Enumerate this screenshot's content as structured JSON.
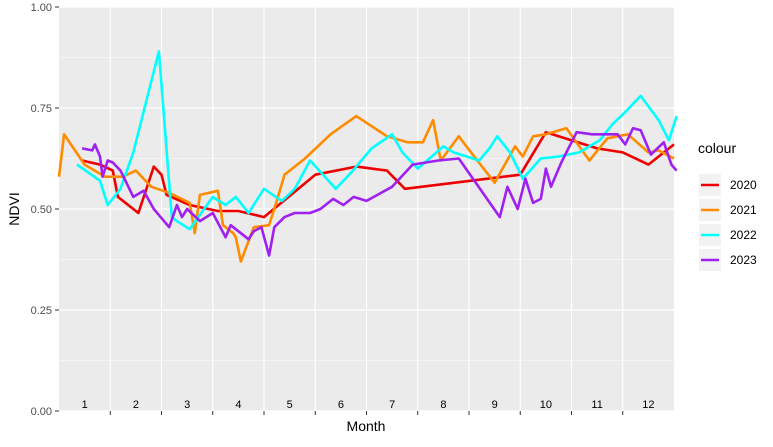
{
  "chart_data": {
    "type": "line",
    "title": "",
    "xlabel": "Month",
    "ylabel": "NDVI",
    "xlim": [
      0.5,
      12.5
    ],
    "ylim": [
      0,
      1
    ],
    "x_ticks": [
      "1",
      "2",
      "3",
      "4",
      "5",
      "6",
      "7",
      "8",
      "9",
      "10",
      "11",
      "12"
    ],
    "y_ticks": [
      "0.00",
      "0.25",
      "0.50",
      "0.75",
      "1.00"
    ],
    "y_tick_values": [
      0,
      0.25,
      0.5,
      0.75,
      1
    ],
    "grid": true,
    "background": "#EBEBEB",
    "legend": {
      "title": "colour",
      "placement": "right"
    },
    "series": [
      {
        "name": "2020",
        "color": "#EE0000",
        "x": [
          0.95,
          1.3,
          1.55,
          1.65,
          2.05,
          2.35,
          2.5,
          2.6,
          3.05,
          3.6,
          4.0,
          4.5,
          5.5,
          6.3,
          6.9,
          7.25,
          9.5,
          10.0,
          11.0,
          11.5,
          12.0,
          12.5
        ],
        "y": [
          0.62,
          0.61,
          0.595,
          0.53,
          0.49,
          0.605,
          0.585,
          0.535,
          0.51,
          0.495,
          0.495,
          0.48,
          0.585,
          0.605,
          0.595,
          0.55,
          0.585,
          0.69,
          0.65,
          0.64,
          0.61,
          0.66
        ]
      },
      {
        "name": "2021",
        "color": "#FF8C00",
        "x": [
          0.5,
          0.6,
          1.0,
          1.4,
          1.75,
          2.0,
          2.3,
          2.65,
          3.05,
          3.15,
          3.25,
          3.6,
          3.7,
          3.9,
          3.95,
          4.05,
          4.3,
          4.6,
          4.75,
          4.9,
          5.3,
          5.8,
          6.3,
          6.9,
          7.3,
          7.6,
          7.8,
          7.95,
          8.3,
          8.45,
          9.0,
          9.4,
          9.55,
          9.75,
          10.0,
          10.4,
          10.85,
          11.2,
          11.6,
          12.0,
          12.2,
          12.5
        ],
        "y": [
          0.58,
          0.685,
          0.61,
          0.58,
          0.58,
          0.595,
          0.555,
          0.54,
          0.515,
          0.44,
          0.535,
          0.545,
          0.46,
          0.44,
          0.43,
          0.37,
          0.455,
          0.46,
          0.52,
          0.585,
          0.625,
          0.685,
          0.73,
          0.68,
          0.665,
          0.665,
          0.72,
          0.62,
          0.68,
          0.655,
          0.565,
          0.655,
          0.63,
          0.68,
          0.685,
          0.7,
          0.62,
          0.675,
          0.685,
          0.64,
          0.645,
          0.625
        ]
      },
      {
        "name": "2022",
        "color": "#00FFFF",
        "x": [
          0.85,
          1.3,
          1.45,
          1.7,
          1.95,
          2.45,
          2.7,
          2.8,
          3.05,
          3.5,
          3.75,
          3.95,
          4.2,
          4.5,
          4.85,
          5.1,
          5.4,
          5.9,
          6.2,
          6.6,
          7.0,
          7.2,
          7.5,
          8.0,
          8.2,
          8.7,
          8.9,
          9.05,
          9.3,
          9.55,
          9.9,
          10.25,
          10.65,
          11.05,
          11.3,
          11.55,
          11.85,
          12.2,
          12.4,
          12.55
        ],
        "y": [
          0.61,
          0.57,
          0.51,
          0.55,
          0.64,
          0.89,
          0.48,
          0.47,
          0.45,
          0.53,
          0.51,
          0.53,
          0.49,
          0.55,
          0.52,
          0.55,
          0.62,
          0.55,
          0.59,
          0.65,
          0.685,
          0.64,
          0.6,
          0.655,
          0.64,
          0.62,
          0.65,
          0.68,
          0.64,
          0.575,
          0.625,
          0.63,
          0.64,
          0.67,
          0.71,
          0.74,
          0.78,
          0.72,
          0.67,
          0.73
        ]
      },
      {
        "name": "2023",
        "color": "#A020F0",
        "x": [
          0.95,
          1.15,
          1.2,
          1.3,
          1.35,
          1.45,
          1.55,
          1.7,
          1.95,
          2.15,
          2.35,
          2.45,
          2.65,
          2.8,
          2.9,
          3.0,
          3.25,
          3.5,
          3.75,
          3.85,
          4.05,
          4.2,
          4.3,
          4.45,
          4.6,
          4.7,
          4.9,
          5.1,
          5.4,
          5.6,
          5.85,
          6.05,
          6.25,
          6.5,
          7.0,
          7.4,
          7.9,
          8.3,
          9.1,
          9.25,
          9.45,
          9.6,
          9.75,
          9.9,
          10.0,
          10.1,
          10.3,
          10.6,
          10.9,
          11.2,
          11.4,
          11.55,
          11.7,
          11.85,
          12.05,
          12.3,
          12.45,
          12.55
        ],
        "y": [
          0.65,
          0.645,
          0.66,
          0.63,
          0.58,
          0.62,
          0.615,
          0.595,
          0.53,
          0.545,
          0.5,
          0.485,
          0.455,
          0.51,
          0.48,
          0.5,
          0.47,
          0.49,
          0.43,
          0.46,
          0.44,
          0.425,
          0.445,
          0.455,
          0.385,
          0.455,
          0.48,
          0.49,
          0.49,
          0.5,
          0.525,
          0.51,
          0.53,
          0.52,
          0.555,
          0.61,
          0.62,
          0.625,
          0.48,
          0.555,
          0.5,
          0.575,
          0.515,
          0.525,
          0.6,
          0.555,
          0.615,
          0.69,
          0.685,
          0.685,
          0.685,
          0.66,
          0.7,
          0.695,
          0.635,
          0.665,
          0.61,
          0.595
        ]
      }
    ]
  }
}
